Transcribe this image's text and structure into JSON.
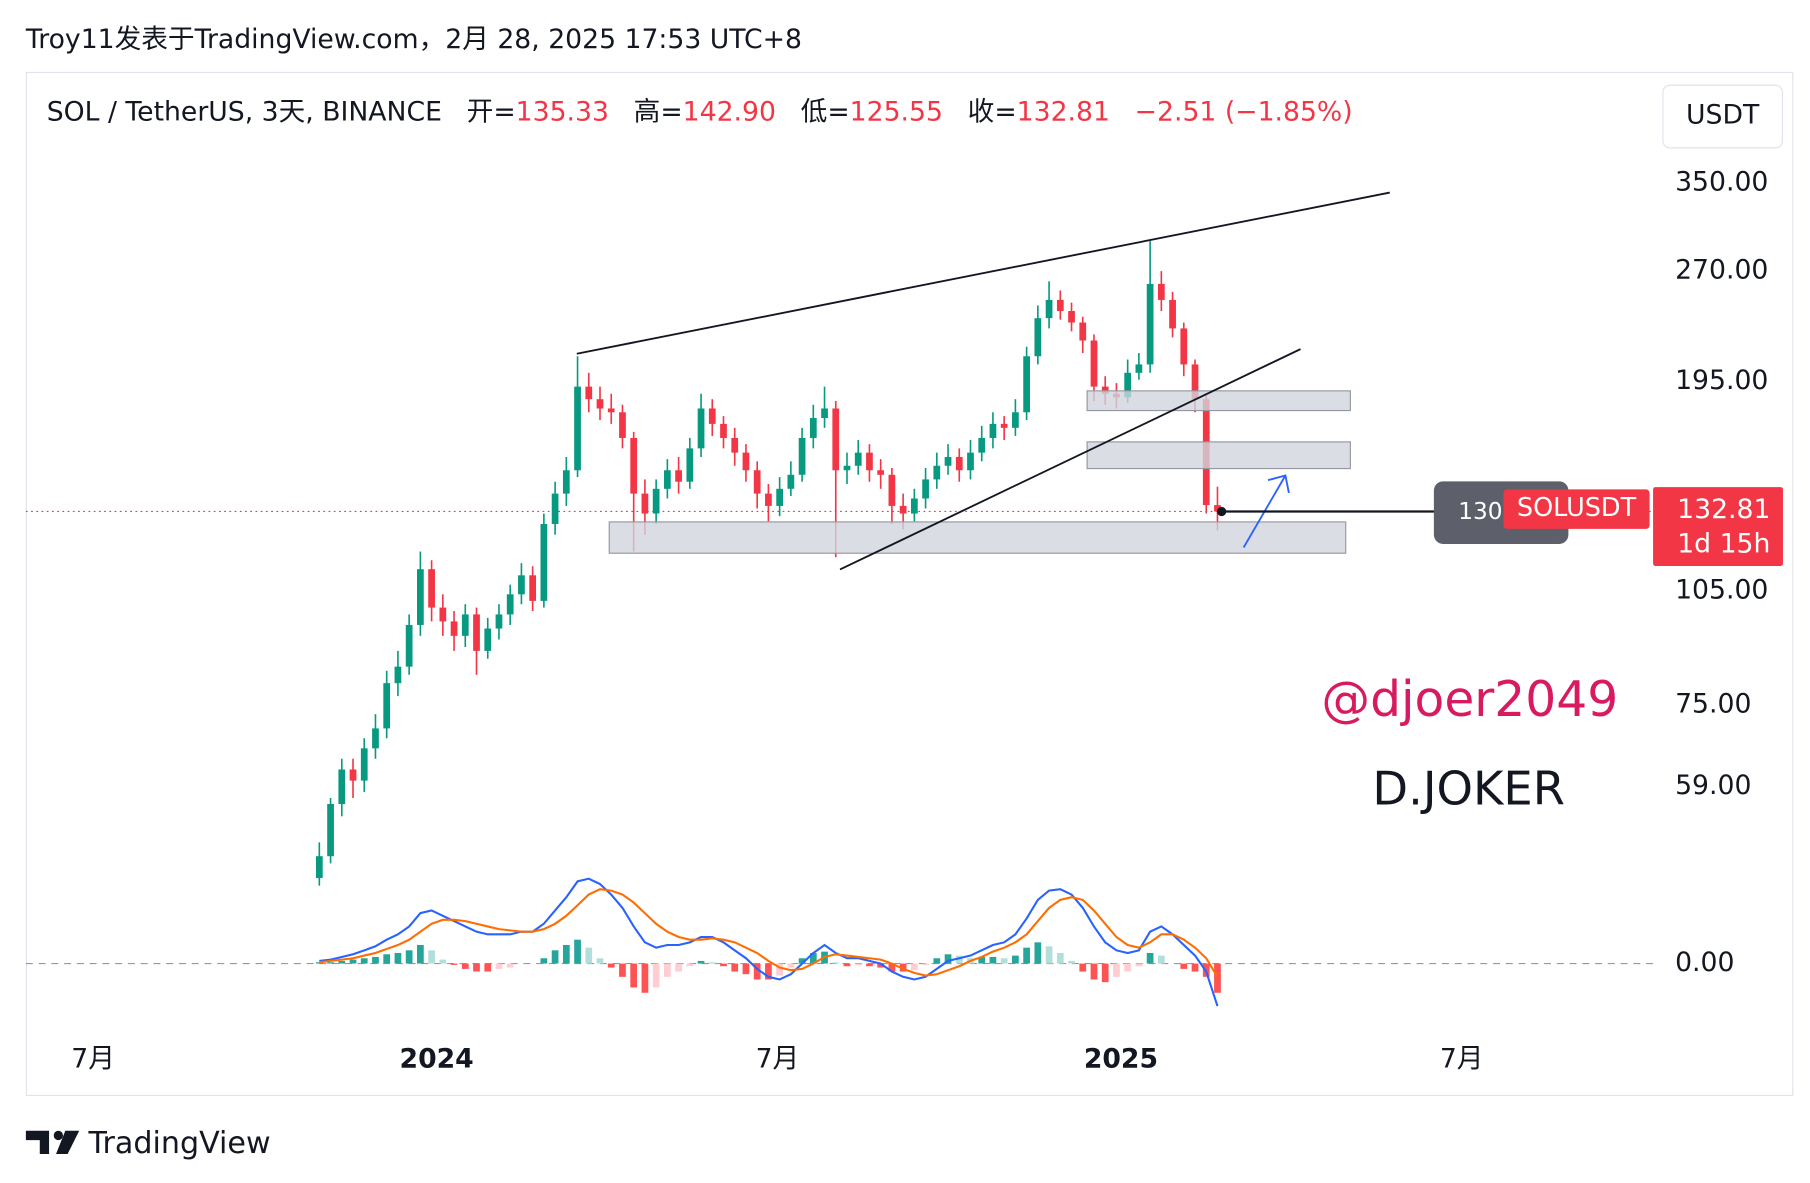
{
  "header": {
    "caption": "Troy11发表于TradingView.com，2月 28, 2025 17:53 UTC+8",
    "symbol": "SOL / TetherUS, 3天, BINANCE",
    "open_label": "开=",
    "open": "135.33",
    "high_label": "高=",
    "high": "142.90",
    "low_label": "低=",
    "low": "125.55",
    "close_label": "收=",
    "close": "132.81",
    "change": "−2.51 (−1.85%)",
    "currency": "USDT"
  },
  "annotations": {
    "tag_level": "130",
    "tag_symbol": "SOLUSDT",
    "countdown": "1d 15h",
    "handle": "@djoer2049",
    "author": "D.JOKER",
    "brand": "TradingView"
  },
  "chart_data": {
    "type": "candlestick",
    "log_scale": true,
    "up_color": "#089981",
    "down_color": "#f23645",
    "xlim": [
      -26.14,
      118.8
    ],
    "xticks": [
      {
        "value": -20.15,
        "label": "7月"
      },
      {
        "value": 10.45,
        "label": "2024",
        "bold": true
      },
      {
        "value": 40.8,
        "label": "7月"
      },
      {
        "value": 71.4,
        "label": "2025",
        "bold": true
      },
      {
        "value": 101.75,
        "label": "7月"
      }
    ],
    "ylim": [
      46.9,
      385.2
    ],
    "yticks": [
      {
        "value": 350,
        "label": "350.00"
      },
      {
        "value": 270,
        "label": "270.00"
      },
      {
        "value": 195,
        "label": "195.00"
      },
      {
        "value": 105,
        "label": "105.00"
      },
      {
        "value": 75,
        "label": "75.00"
      },
      {
        "value": 59,
        "label": "59.00"
      }
    ],
    "candles": [
      [
        45,
        50,
        44,
        48
      ],
      [
        48,
        57,
        47,
        56
      ],
      [
        56,
        64,
        54,
        62
      ],
      [
        62,
        64,
        57,
        60
      ],
      [
        60,
        68,
        58,
        66
      ],
      [
        66,
        73,
        64,
        70
      ],
      [
        70,
        83,
        68,
        80
      ],
      [
        80,
        88,
        77,
        84
      ],
      [
        84,
        98,
        82,
        95
      ],
      [
        95,
        118,
        92,
        112
      ],
      [
        112,
        115,
        96,
        100
      ],
      [
        100,
        104,
        92,
        96
      ],
      [
        96,
        99,
        88,
        92
      ],
      [
        92,
        101,
        89,
        98
      ],
      [
        98,
        100,
        82,
        88
      ],
      [
        88,
        97,
        86,
        94
      ],
      [
        94,
        101,
        91,
        98
      ],
      [
        98,
        107,
        95,
        104
      ],
      [
        104,
        114,
        101,
        110
      ],
      [
        110,
        113,
        99,
        102
      ],
      [
        102,
        132,
        100,
        128
      ],
      [
        128,
        145,
        124,
        140
      ],
      [
        140,
        156,
        135,
        150
      ],
      [
        150,
        210,
        147,
        192
      ],
      [
        192,
        200,
        178,
        185
      ],
      [
        185,
        192,
        174,
        180
      ],
      [
        180,
        188,
        172,
        178
      ],
      [
        178,
        182,
        160,
        165
      ],
      [
        165,
        168,
        118,
        140
      ],
      [
        140,
        146,
        124,
        132
      ],
      [
        132,
        146,
        128,
        142
      ],
      [
        142,
        155,
        138,
        150
      ],
      [
        150,
        156,
        140,
        145
      ],
      [
        145,
        165,
        142,
        160
      ],
      [
        160,
        188,
        156,
        180
      ],
      [
        180,
        185,
        166,
        172
      ],
      [
        172,
        176,
        160,
        165
      ],
      [
        165,
        170,
        152,
        158
      ],
      [
        158,
        162,
        145,
        150
      ],
      [
        150,
        154,
        134,
        140
      ],
      [
        140,
        144,
        129,
        135
      ],
      [
        135,
        147,
        131,
        142
      ],
      [
        142,
        154,
        139,
        148
      ],
      [
        148,
        170,
        145,
        165
      ],
      [
        165,
        182,
        160,
        175
      ],
      [
        175,
        192,
        170,
        180
      ],
      [
        180,
        184,
        116,
        150
      ],
      [
        150,
        158,
        144,
        152
      ],
      [
        152,
        164,
        148,
        158
      ],
      [
        158,
        162,
        145,
        150
      ],
      [
        150,
        155,
        142,
        148
      ],
      [
        148,
        151,
        128,
        135
      ],
      [
        135,
        140,
        126,
        132
      ],
      [
        132,
        142,
        129,
        138
      ],
      [
        138,
        151,
        134,
        146
      ],
      [
        146,
        158,
        142,
        152
      ],
      [
        152,
        162,
        148,
        156
      ],
      [
        156,
        160,
        145,
        150
      ],
      [
        150,
        164,
        146,
        158
      ],
      [
        158,
        171,
        154,
        165
      ],
      [
        165,
        178,
        160,
        172
      ],
      [
        172,
        176,
        164,
        170
      ],
      [
        170,
        185,
        166,
        178
      ],
      [
        178,
        216,
        174,
        210
      ],
      [
        210,
        244,
        205,
        235
      ],
      [
        235,
        262,
        228,
        248
      ],
      [
        248,
        255,
        234,
        240
      ],
      [
        240,
        246,
        226,
        232
      ],
      [
        232,
        236,
        212,
        220
      ],
      [
        220,
        224,
        184,
        192
      ],
      [
        192,
        198,
        182,
        188
      ],
      [
        188,
        194,
        180,
        186
      ],
      [
        186,
        208,
        183,
        200
      ],
      [
        200,
        212,
        196,
        205
      ],
      [
        205,
        295,
        200,
        260
      ],
      [
        260,
        270,
        240,
        248
      ],
      [
        248,
        254,
        222,
        228
      ],
      [
        228,
        232,
        198,
        205
      ],
      [
        205,
        208,
        178,
        185
      ],
      [
        185,
        187,
        132,
        135.33
      ],
      [
        135.33,
        142.9,
        125.55,
        132.81
      ]
    ],
    "macd_ylim": [
      -43,
      75
    ],
    "macd_ticks": [
      {
        "value": 0,
        "label": "0.00"
      }
    ],
    "macd_color": "#2962ff",
    "signal_color": "#ff6d00",
    "macd": [
      2,
      3,
      5,
      7,
      10,
      13,
      18,
      22,
      28,
      38,
      40,
      36,
      32,
      28,
      24,
      22,
      22,
      22,
      24,
      24,
      30,
      40,
      50,
      62,
      64,
      60,
      52,
      42,
      28,
      16,
      12,
      14,
      14,
      16,
      20,
      20,
      16,
      10,
      4,
      -4,
      -10,
      -12,
      -8,
      0,
      8,
      14,
      8,
      4,
      4,
      2,
      0,
      -6,
      -10,
      -12,
      -10,
      -4,
      2,
      4,
      6,
      10,
      14,
      16,
      22,
      34,
      48,
      55,
      56,
      52,
      42,
      28,
      16,
      10,
      8,
      10,
      24,
      28,
      22,
      14,
      6,
      -6,
      -32
    ],
    "signal": [
      1,
      2,
      3,
      4,
      6,
      8,
      11,
      14,
      18,
      24,
      30,
      33,
      33,
      32,
      30,
      28,
      26,
      25,
      24,
      24,
      26,
      30,
      36,
      44,
      52,
      56,
      55,
      52,
      46,
      38,
      30,
      24,
      20,
      18,
      18,
      19,
      18,
      16,
      12,
      8,
      2,
      -3,
      -5,
      -4,
      0,
      5,
      7,
      6,
      5,
      4,
      3,
      0,
      -4,
      -7,
      -9,
      -8,
      -5,
      -2,
      2,
      5,
      9,
      12,
      16,
      22,
      32,
      42,
      48,
      50,
      48,
      40,
      30,
      20,
      14,
      12,
      16,
      22,
      22,
      18,
      12,
      4,
      -10
    ],
    "histogram": [
      1,
      1,
      2,
      3,
      4,
      5,
      7,
      8,
      10,
      14,
      10,
      3,
      -1,
      -4,
      -6,
      -6,
      -4,
      -3,
      0,
      0,
      4,
      10,
      14,
      18,
      12,
      4,
      -3,
      -10,
      -18,
      -22,
      -18,
      -10,
      -6,
      -2,
      2,
      1,
      -2,
      -6,
      -8,
      -12,
      -12,
      -9,
      -3,
      4,
      8,
      9,
      1,
      -2,
      -1,
      -2,
      -3,
      -6,
      -6,
      -5,
      -1,
      4,
      7,
      6,
      4,
      5,
      5,
      4,
      6,
      12,
      16,
      13,
      8,
      2,
      -6,
      -12,
      -14,
      -10,
      -6,
      -2,
      8,
      6,
      0,
      -4,
      -6,
      -10,
      -22
    ]
  }
}
